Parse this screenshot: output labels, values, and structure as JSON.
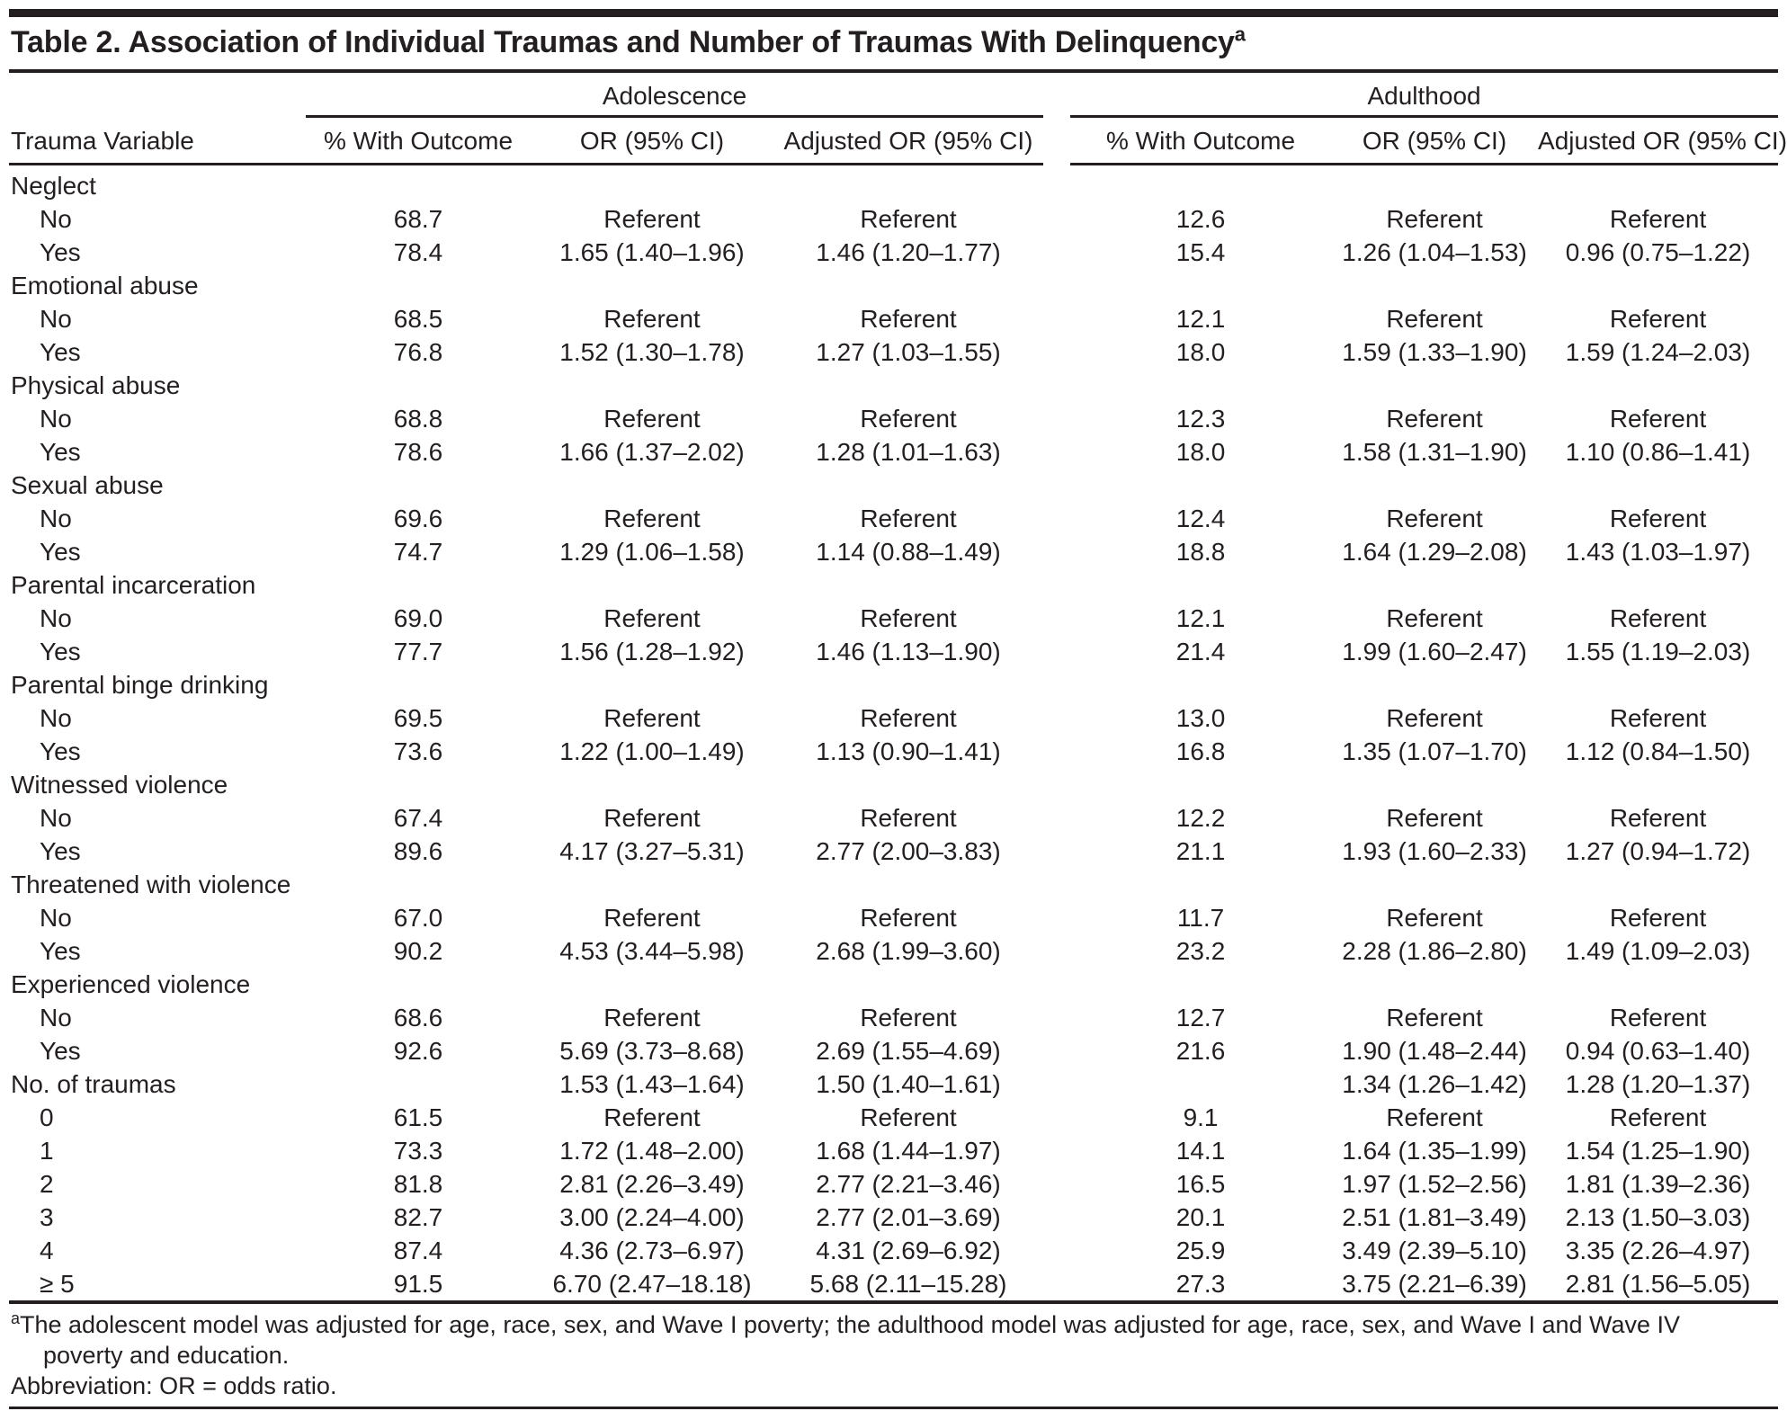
{
  "title": {
    "text": "Table 2. Association of Individual Traumas and Number of Traumas With Delinquency",
    "superscript": "a"
  },
  "colors": {
    "text": "#231f20",
    "rule": "#231f20",
    "background": "#ffffff"
  },
  "table": {
    "row_label_header": "Trauma Variable",
    "groups": [
      {
        "label": "Adolescence",
        "columns": [
          "% With Outcome",
          "OR (95% CI)",
          "Adjusted OR (95% CI)"
        ]
      },
      {
        "label": "Adulthood",
        "columns": [
          "% With Outcome",
          "OR (95% CI)",
          "Adjusted OR (95% CI)"
        ]
      }
    ],
    "rows": [
      {
        "label": "Neglect",
        "indent": false,
        "cells": [
          "",
          "",
          "",
          "",
          "",
          ""
        ]
      },
      {
        "label": "No",
        "indent": true,
        "cells": [
          "68.7",
          "Referent",
          "Referent",
          "12.6",
          "Referent",
          "Referent"
        ]
      },
      {
        "label": "Yes",
        "indent": true,
        "cells": [
          "78.4",
          "1.65 (1.40–1.96)",
          "1.46 (1.20–1.77)",
          "15.4",
          "1.26 (1.04–1.53)",
          "0.96 (0.75–1.22)"
        ]
      },
      {
        "label": "Emotional abuse",
        "indent": false,
        "cells": [
          "",
          "",
          "",
          "",
          "",
          ""
        ]
      },
      {
        "label": "No",
        "indent": true,
        "cells": [
          "68.5",
          "Referent",
          "Referent",
          "12.1",
          "Referent",
          "Referent"
        ]
      },
      {
        "label": "Yes",
        "indent": true,
        "cells": [
          "76.8",
          "1.52 (1.30–1.78)",
          "1.27 (1.03–1.55)",
          "18.0",
          "1.59 (1.33–1.90)",
          "1.59 (1.24–2.03)"
        ]
      },
      {
        "label": "Physical abuse",
        "indent": false,
        "cells": [
          "",
          "",
          "",
          "",
          "",
          ""
        ]
      },
      {
        "label": "No",
        "indent": true,
        "cells": [
          "68.8",
          "Referent",
          "Referent",
          "12.3",
          "Referent",
          "Referent"
        ]
      },
      {
        "label": "Yes",
        "indent": true,
        "cells": [
          "78.6",
          "1.66 (1.37–2.02)",
          "1.28 (1.01–1.63)",
          "18.0",
          "1.58 (1.31–1.90)",
          "1.10 (0.86–1.41)"
        ]
      },
      {
        "label": "Sexual abuse",
        "indent": false,
        "cells": [
          "",
          "",
          "",
          "",
          "",
          ""
        ]
      },
      {
        "label": "No",
        "indent": true,
        "cells": [
          "69.6",
          "Referent",
          "Referent",
          "12.4",
          "Referent",
          "Referent"
        ]
      },
      {
        "label": "Yes",
        "indent": true,
        "cells": [
          "74.7",
          "1.29 (1.06–1.58)",
          "1.14 (0.88–1.49)",
          "18.8",
          "1.64 (1.29–2.08)",
          "1.43 (1.03–1.97)"
        ]
      },
      {
        "label": "Parental incarceration",
        "indent": false,
        "cells": [
          "",
          "",
          "",
          "",
          "",
          ""
        ]
      },
      {
        "label": "No",
        "indent": true,
        "cells": [
          "69.0",
          "Referent",
          "Referent",
          "12.1",
          "Referent",
          "Referent"
        ]
      },
      {
        "label": "Yes",
        "indent": true,
        "cells": [
          "77.7",
          "1.56 (1.28–1.92)",
          "1.46 (1.13–1.90)",
          "21.4",
          "1.99 (1.60–2.47)",
          "1.55 (1.19–2.03)"
        ]
      },
      {
        "label": "Parental binge drinking",
        "indent": false,
        "cells": [
          "",
          "",
          "",
          "",
          "",
          ""
        ]
      },
      {
        "label": "No",
        "indent": true,
        "cells": [
          "69.5",
          "Referent",
          "Referent",
          "13.0",
          "Referent",
          "Referent"
        ]
      },
      {
        "label": "Yes",
        "indent": true,
        "cells": [
          "73.6",
          "1.22 (1.00–1.49)",
          "1.13 (0.90–1.41)",
          "16.8",
          "1.35 (1.07–1.70)",
          "1.12 (0.84–1.50)"
        ]
      },
      {
        "label": "Witnessed violence",
        "indent": false,
        "cells": [
          "",
          "",
          "",
          "",
          "",
          ""
        ]
      },
      {
        "label": "No",
        "indent": true,
        "cells": [
          "67.4",
          "Referent",
          "Referent",
          "12.2",
          "Referent",
          "Referent"
        ]
      },
      {
        "label": "Yes",
        "indent": true,
        "cells": [
          "89.6",
          "4.17 (3.27–5.31)",
          "2.77 (2.00–3.83)",
          "21.1",
          "1.93 (1.60–2.33)",
          "1.27 (0.94–1.72)"
        ]
      },
      {
        "label": "Threatened with violence",
        "indent": false,
        "cells": [
          "",
          "",
          "",
          "",
          "",
          ""
        ]
      },
      {
        "label": "No",
        "indent": true,
        "cells": [
          "67.0",
          "Referent",
          "Referent",
          "11.7",
          "Referent",
          "Referent"
        ]
      },
      {
        "label": "Yes",
        "indent": true,
        "cells": [
          "90.2",
          "4.53 (3.44–5.98)",
          "2.68 (1.99–3.60)",
          "23.2",
          "2.28 (1.86–2.80)",
          "1.49 (1.09–2.03)"
        ]
      },
      {
        "label": "Experienced violence",
        "indent": false,
        "cells": [
          "",
          "",
          "",
          "",
          "",
          ""
        ]
      },
      {
        "label": "No",
        "indent": true,
        "cells": [
          "68.6",
          "Referent",
          "Referent",
          "12.7",
          "Referent",
          "Referent"
        ]
      },
      {
        "label": "Yes",
        "indent": true,
        "cells": [
          "92.6",
          "5.69 (3.73–8.68)",
          "2.69 (1.55–4.69)",
          "21.6",
          "1.90 (1.48–2.44)",
          "0.94 (0.63–1.40)"
        ]
      },
      {
        "label": "No. of traumas",
        "indent": false,
        "cells": [
          "",
          "1.53 (1.43–1.64)",
          "1.50 (1.40–1.61)",
          "",
          "1.34 (1.26–1.42)",
          "1.28 (1.20–1.37)"
        ]
      },
      {
        "label": "0",
        "indent": true,
        "cells": [
          "61.5",
          "Referent",
          "Referent",
          "9.1",
          "Referent",
          "Referent"
        ]
      },
      {
        "label": "1",
        "indent": true,
        "cells": [
          "73.3",
          "1.72 (1.48–2.00)",
          "1.68 (1.44–1.97)",
          "14.1",
          "1.64 (1.35–1.99)",
          "1.54 (1.25–1.90)"
        ]
      },
      {
        "label": "2",
        "indent": true,
        "cells": [
          "81.8",
          "2.81 (2.26–3.49)",
          "2.77 (2.21–3.46)",
          "16.5",
          "1.97 (1.52–2.56)",
          "1.81 (1.39–2.36)"
        ]
      },
      {
        "label": "3",
        "indent": true,
        "cells": [
          "82.7",
          "3.00 (2.24–4.00)",
          "2.77 (2.01–3.69)",
          "20.1",
          "2.51 (1.81–3.49)",
          "2.13 (1.50–3.03)"
        ]
      },
      {
        "label": "4",
        "indent": true,
        "cells": [
          "87.4",
          "4.36 (2.73–6.97)",
          "4.31 (2.69–6.92)",
          "25.9",
          "3.49 (2.39–5.10)",
          "3.35 (2.26–4.97)"
        ]
      },
      {
        "label": "≥ 5",
        "indent": true,
        "cells": [
          "91.5",
          "6.70 (2.47–18.18)",
          "5.68 (2.11–15.28)",
          "27.3",
          "3.75 (2.21–6.39)",
          "2.81 (1.56–5.05)"
        ]
      }
    ]
  },
  "footnotes": {
    "marker": "a",
    "line1": "The adolescent model was adjusted for age, race, sex, and Wave I poverty; the adulthood model was adjusted for age, race, sex, and Wave I and Wave IV",
    "line2": "poverty and education.",
    "abbreviation": "Abbreviation: OR = odds ratio."
  }
}
